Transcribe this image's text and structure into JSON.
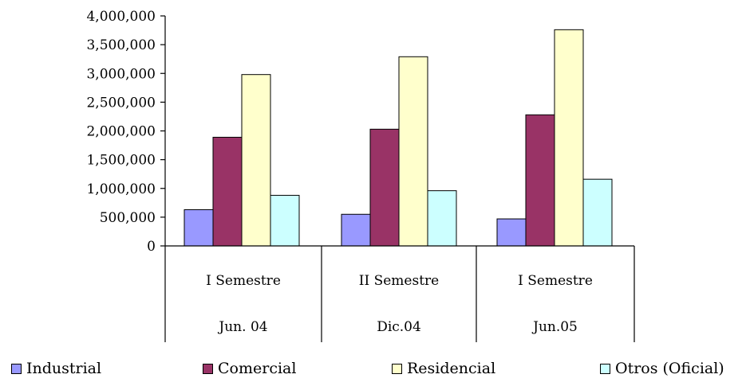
{
  "chart_data": {
    "type": "bar",
    "title": "",
    "xlabel": "",
    "ylabel": "",
    "ylim": [
      0,
      4000000
    ],
    "y_ticks": [
      "0",
      "500,000",
      "1,000,000",
      "1,500,000",
      "2,000,000",
      "2,500,000",
      "3,000,000",
      "3,500,000",
      "4,000,000"
    ],
    "categories": [
      {
        "period": "I Semestre",
        "date": "Jun. 04"
      },
      {
        "period": "II Semestre",
        "date": "Dic.04"
      },
      {
        "period": "I Semestre",
        "date": "Jun.05"
      }
    ],
    "series": [
      {
        "name": "Industrial",
        "color": "#9999ff",
        "values": [
          630000,
          550000,
          470000
        ]
      },
      {
        "name": "Comercial",
        "color": "#993366",
        "values": [
          1890000,
          2030000,
          2280000
        ]
      },
      {
        "name": "Residencial",
        "color": "#ffffcc",
        "values": [
          2980000,
          3290000,
          3760000
        ]
      },
      {
        "name": "Otros (Oficial)",
        "color": "#ccffff",
        "values": [
          880000,
          960000,
          1160000
        ]
      }
    ],
    "grid": false,
    "legend_position": "bottom"
  }
}
